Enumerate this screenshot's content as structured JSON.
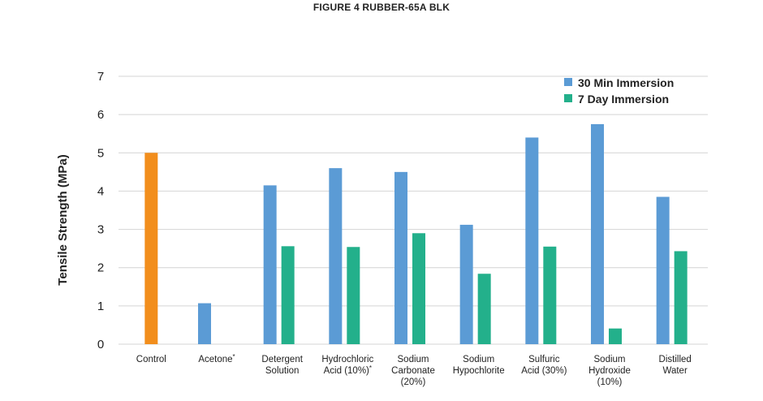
{
  "chart_data": {
    "type": "bar",
    "title": "FIGURE 4 RUBBER-65A BLK",
    "ylabel": "Tensile Strength (MPa)",
    "xlabel": "",
    "ylim": [
      0,
      7
    ],
    "yticks": [
      "0",
      "1",
      "2",
      "3",
      "4",
      "5",
      "6",
      "7"
    ],
    "grid": true,
    "legend_position": "top-right",
    "categories": [
      [
        "Control"
      ],
      [
        "Acetone*"
      ],
      [
        "Detergent",
        "Solution"
      ],
      [
        "Hydrochloric",
        "Acid (10%)*"
      ],
      [
        "Sodium",
        "Carbonate",
        "(20%)"
      ],
      [
        "Sodium",
        "Hypochlorite"
      ],
      [
        "Sulfuric",
        "Acid (30%)"
      ],
      [
        "Sodium",
        "Hydroxide",
        "(10%)"
      ],
      [
        "Distilled",
        "Water"
      ]
    ],
    "control": {
      "value": 5.0,
      "color": "#f28e1c"
    },
    "series": [
      {
        "name": "30 Min Immersion",
        "color": "#5b9bd5",
        "values": [
          null,
          1.07,
          4.15,
          4.6,
          4.5,
          3.12,
          5.4,
          5.75,
          3.85
        ]
      },
      {
        "name": "7 Day Immersion",
        "color": "#23b08b",
        "values": [
          null,
          null,
          2.56,
          2.54,
          2.9,
          1.84,
          2.55,
          0.41,
          2.43
        ]
      }
    ]
  }
}
